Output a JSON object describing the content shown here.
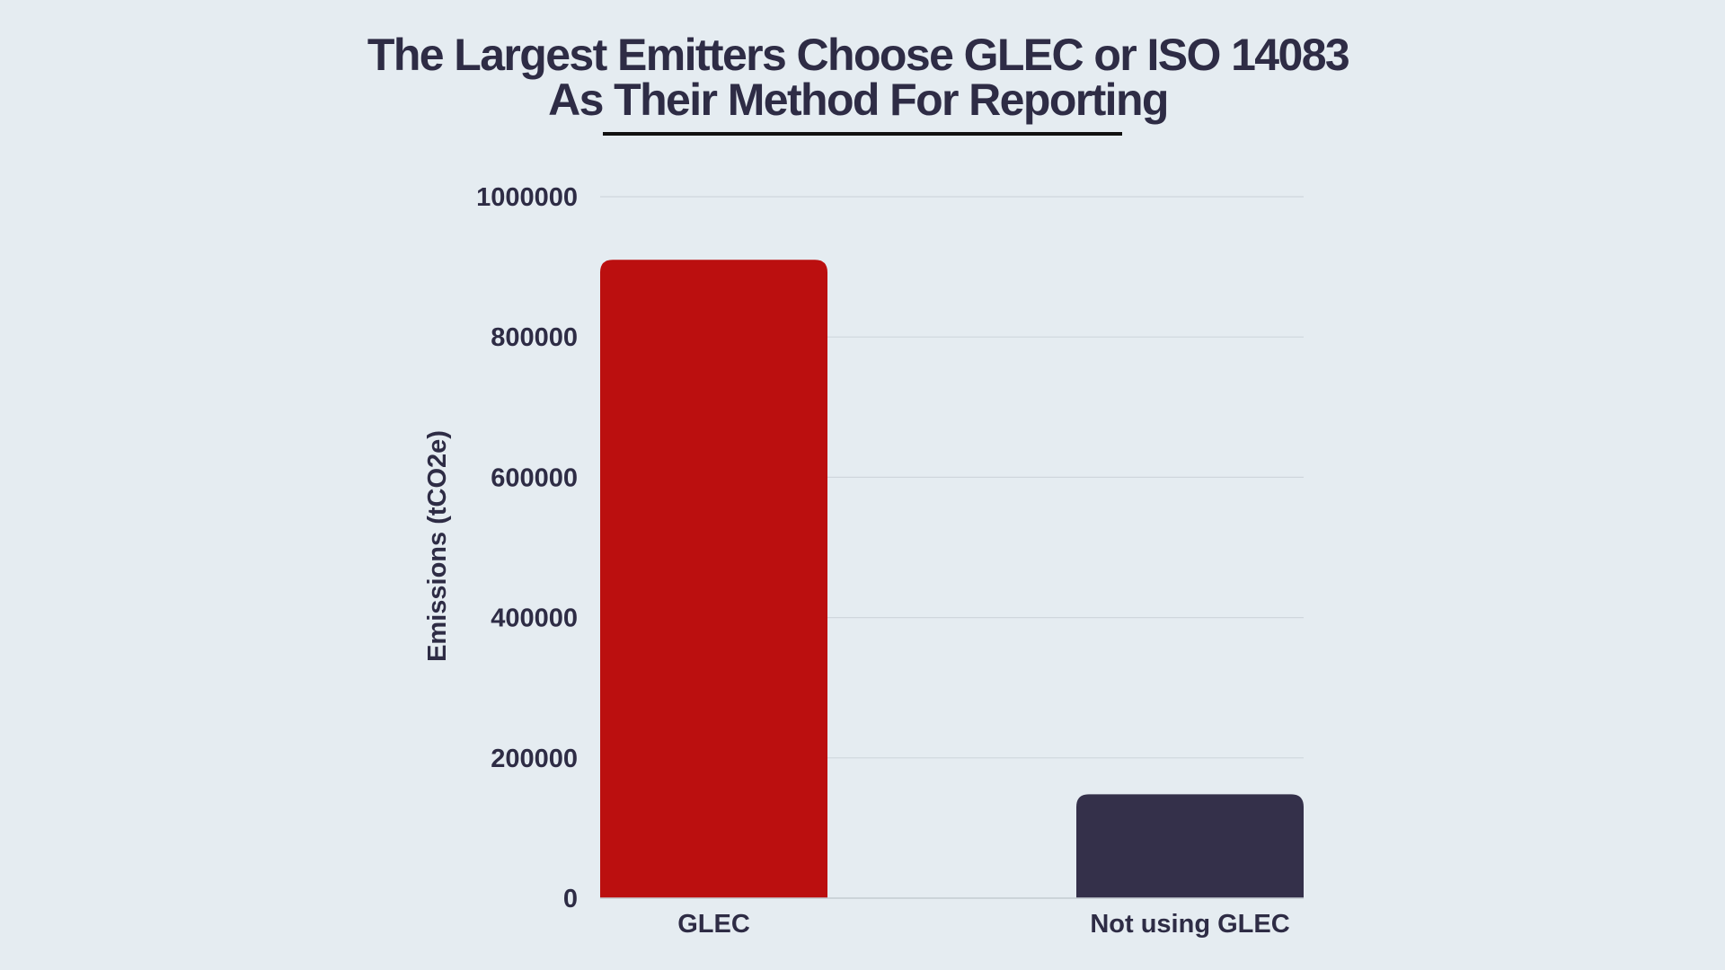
{
  "chart_data": {
    "type": "bar",
    "title_lines": [
      "The Largest Emitters Choose GLEC or ISO 14083",
      "As Their Method For Reporting"
    ],
    "xlabel": "",
    "ylabel": "Emissions (tCO2e)",
    "categories": [
      "GLEC",
      "Not using GLEC"
    ],
    "values": [
      910000,
      148000
    ],
    "colors": [
      "#bb0f0f",
      "#34304a"
    ],
    "ylim": [
      0,
      1000000
    ],
    "yticks": [
      0,
      200000,
      400000,
      600000,
      800000,
      1000000
    ],
    "ytick_labels": [
      "0",
      "200000",
      "400000",
      "600000",
      "800000",
      "1000000"
    ],
    "grid": true,
    "legend": "none"
  }
}
